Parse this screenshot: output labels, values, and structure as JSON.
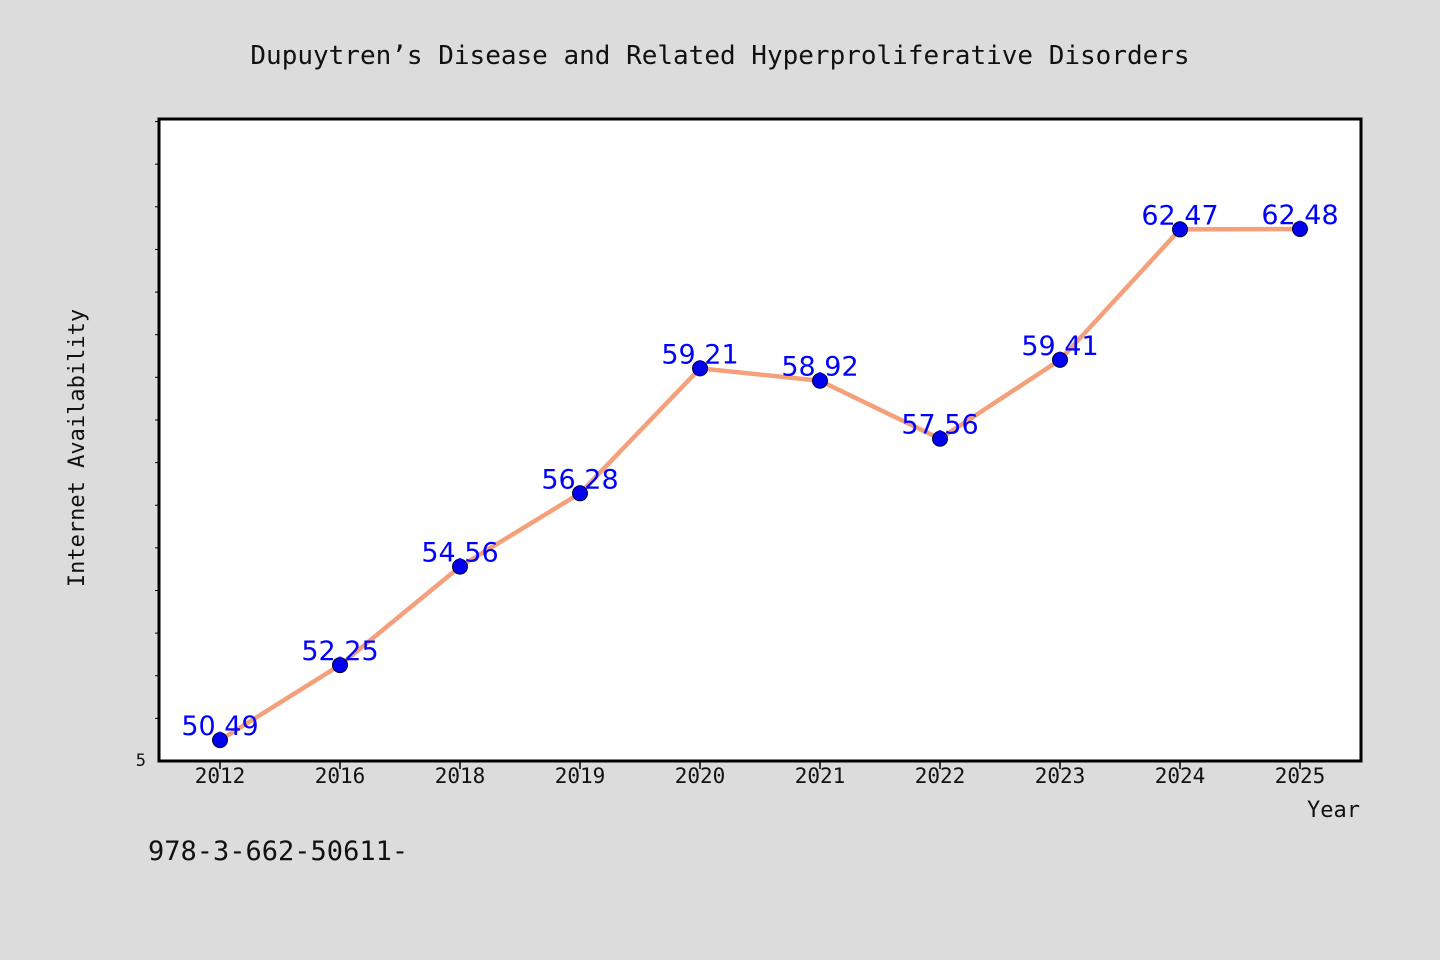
{
  "chart_data": {
    "type": "line",
    "title": "Dupuytren’s Disease and Related Hyperproliferative Disorders",
    "xlabel": "Year",
    "ylabel": "Internet Availability",
    "categories": [
      "2012",
      "2016",
      "2018",
      "2019",
      "2020",
      "2021",
      "2022",
      "2023",
      "2024",
      "2025"
    ],
    "series": [
      {
        "values": [
          50.49,
          52.25,
          54.56,
          56.28,
          59.21,
          58.92,
          57.56,
          59.41,
          62.47,
          62.48
        ],
        "labels": [
          "50.49",
          "52.25",
          "54.56",
          "56.28",
          "59.21",
          "58.92",
          "57.56",
          "59.41",
          "62.47",
          "62.48"
        ],
        "line_color": "#f4a07a",
        "marker_color": "#0000ee",
        "label_color": "#0000ff"
      }
    ],
    "ytick_label": "5",
    "ylim": [
      50.0,
      65.06
    ],
    "grid": false,
    "legend": "none"
  },
  "footer": {
    "isbn": "978-3-662-50611-"
  },
  "colors": {
    "background": "#dcdcdc",
    "plot_background": "#ffffff",
    "axis": "#000000"
  }
}
